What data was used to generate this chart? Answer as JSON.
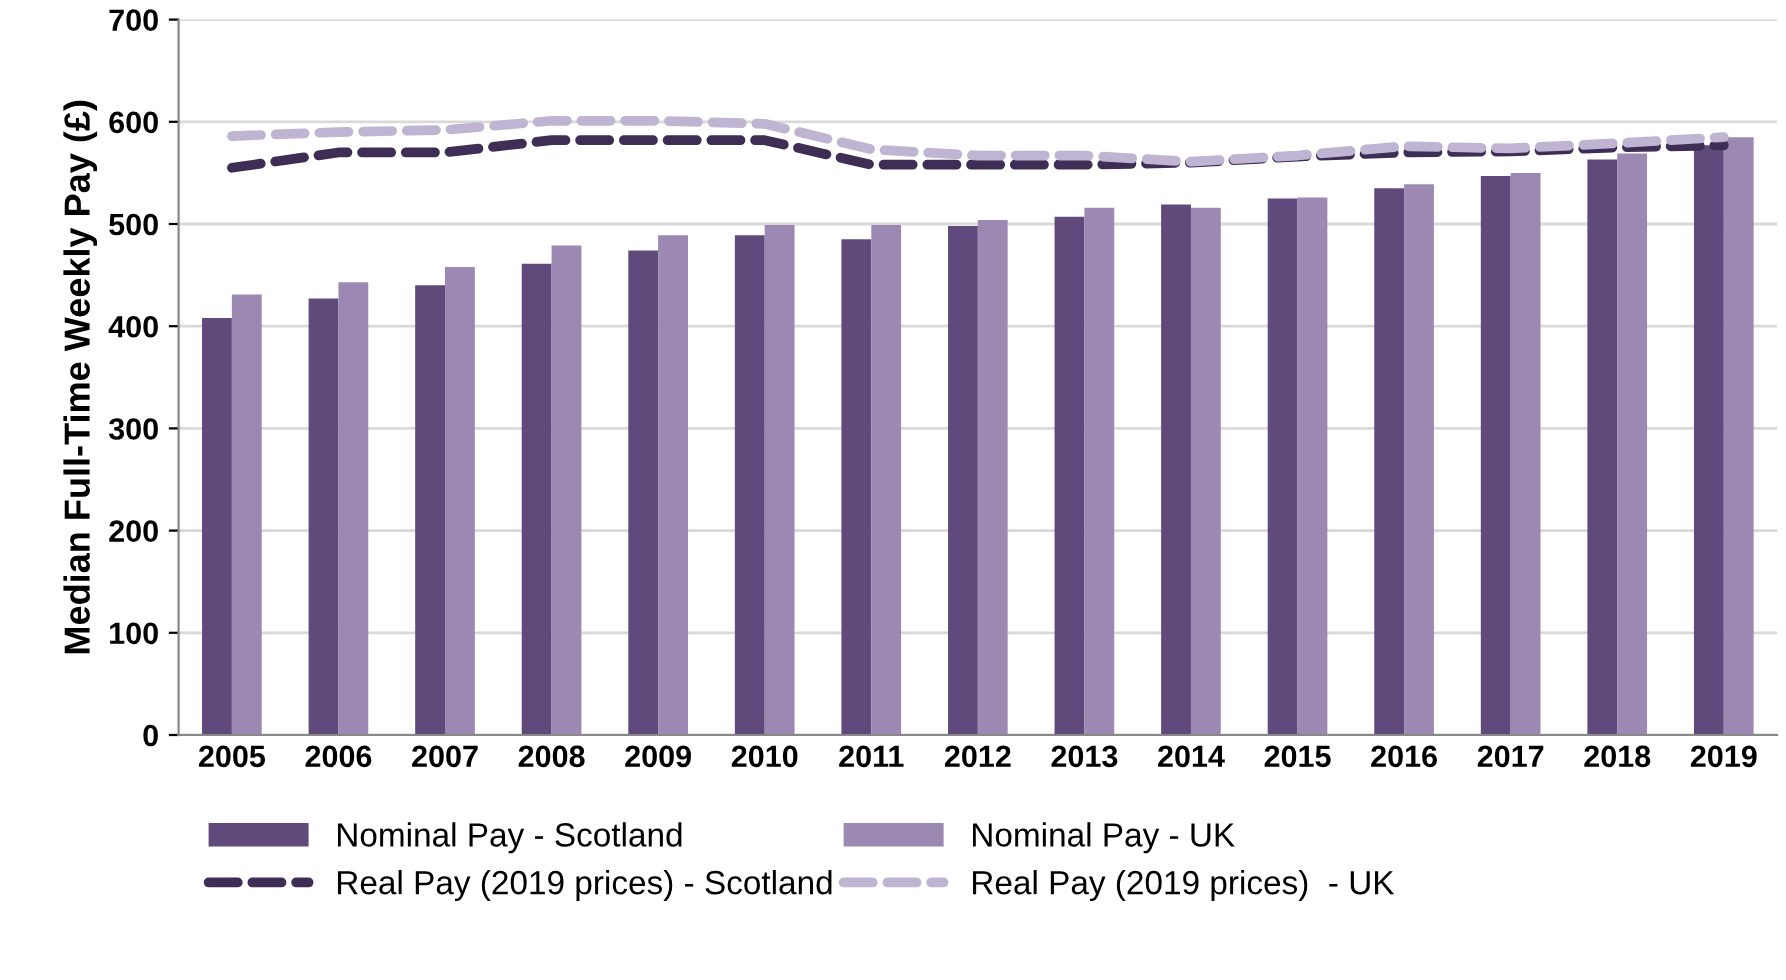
{
  "chart_data": {
    "type": "bar",
    "ylabel": "Median Full-Time Weekly Pay (£)",
    "categories": [
      "2005",
      "2006",
      "2007",
      "2008",
      "2009",
      "2010",
      "2011",
      "2012",
      "2013",
      "2014",
      "2015",
      "2016",
      "2017",
      "2018",
      "2019"
    ],
    "series": [
      {
        "name": "Nominal Pay - Scotland",
        "color": "#604a7b",
        "values": [
          408,
          427,
          440,
          461,
          474,
          489,
          485,
          498,
          507,
          519,
          525,
          535,
          547,
          563,
          577
        ]
      },
      {
        "name": "Nominal Pay - UK",
        "color": "#9b89b3",
        "values": [
          431,
          443,
          458,
          479,
          489,
          499,
          499,
          504,
          516,
          516,
          526,
          539,
          550,
          569,
          585
        ]
      },
      {
        "name": "Real Pay (2019 prices) - Scotland",
        "type": "line",
        "line_style": "dashed",
        "color": "#3e2d55",
        "values": [
          555,
          570,
          570,
          582,
          582,
          582,
          558,
          558,
          558,
          560,
          566,
          570,
          571,
          575,
          577
        ]
      },
      {
        "name": "Real Pay (2019 prices)  - UK",
        "type": "line",
        "line_style": "dashed",
        "color": "#c0b4d3",
        "values": [
          586,
          590,
          592,
          601,
          601,
          598,
          573,
          567,
          567,
          561,
          567,
          576,
          574,
          579,
          585
        ]
      }
    ],
    "ylim": [
      0,
      700
    ],
    "yticks": [
      0,
      100,
      200,
      300,
      400,
      500,
      600,
      700
    ],
    "grid": "y",
    "legend": "bottom"
  }
}
